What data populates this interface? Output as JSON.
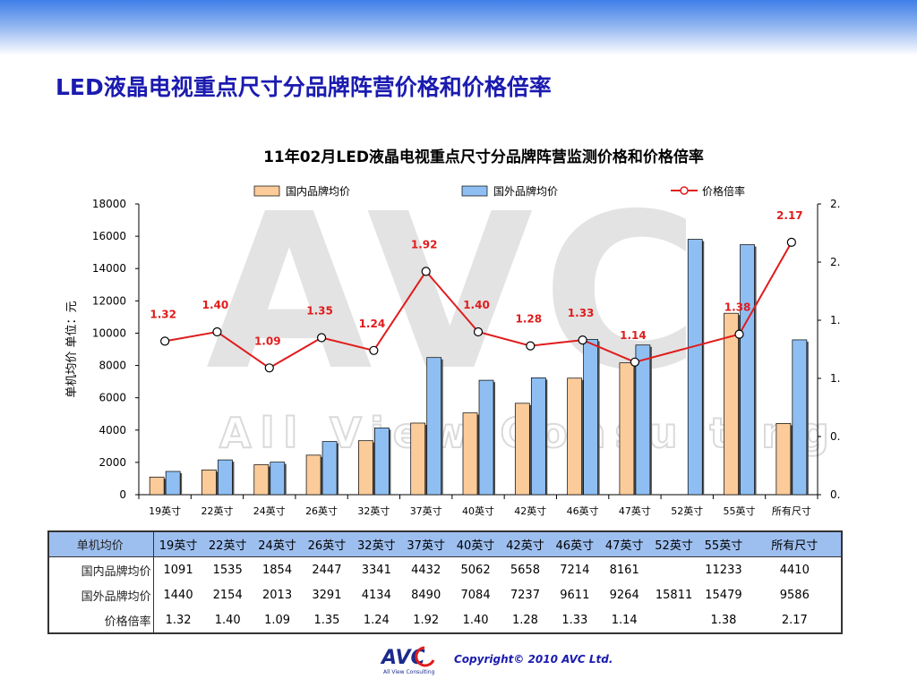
{
  "slide": {
    "title": "LED液晶电视重点尺寸分品牌阵营价格和价格倍率",
    "copyright": "Copyright© 2010 AVC Ltd.",
    "logo_text": "AVC",
    "logo_sub": "All View Consulting",
    "watermark_letters": "AVC",
    "watermark_text": "All View Consulting"
  },
  "chart_data": {
    "type": "bar",
    "title": "11年02月LED液晶电视重点尺寸分品牌阵营监测价格和价格倍率",
    "ylabel": "单机均价 单位：元",
    "ylim": [
      0,
      18000
    ],
    "y_ticks": [
      "0",
      "2000",
      "4000",
      "6000",
      "8000",
      "10000",
      "12000",
      "14000",
      "16000",
      "18000"
    ],
    "y2_ticks": [
      "0.",
      "0.",
      "1.",
      "1.",
      "2.",
      "2."
    ],
    "categories": [
      "19英寸",
      "22英寸",
      "24英寸",
      "26英寸",
      "32英寸",
      "37英寸",
      "40英寸",
      "42英寸",
      "46英寸",
      "47英寸",
      "52英寸",
      "55英寸",
      "所有尺寸"
    ],
    "series": [
      {
        "name": "国内品牌均价",
        "type": "bar",
        "color": "#fbcb9a",
        "values": [
          1091,
          1535,
          1854,
          2447,
          3341,
          4432,
          5062,
          5658,
          7214,
          8161,
          null,
          11233,
          4410
        ]
      },
      {
        "name": "国外品牌均价",
        "type": "bar",
        "color": "#8fbff2",
        "values": [
          1440,
          2154,
          2013,
          3291,
          4134,
          8490,
          7084,
          7237,
          9611,
          9264,
          15811,
          15479,
          9586
        ]
      },
      {
        "name": "价格倍率",
        "type": "line",
        "axis": "right",
        "color": "#e01c1c",
        "ylim": [
          0,
          2.5
        ],
        "values": [
          1.32,
          1.4,
          1.09,
          1.35,
          1.24,
          1.92,
          1.4,
          1.28,
          1.33,
          1.14,
          null,
          1.38,
          2.17
        ],
        "labels": [
          "1.32",
          "1.40",
          "1.09",
          "1.35",
          "1.24",
          "1.92",
          "1.40",
          "1.28",
          "1.33",
          "1.14",
          "",
          "1.38",
          "2.17"
        ]
      }
    ],
    "legend_position": "top",
    "grid": false
  },
  "table": {
    "header_label": "单机均价",
    "columns": [
      "19英寸",
      "22英寸",
      "24英寸",
      "26英寸",
      "32英寸",
      "37英寸",
      "40英寸",
      "42英寸",
      "46英寸",
      "47英寸",
      "52英寸",
      "55英寸",
      "所有尺寸"
    ],
    "rows": [
      {
        "label": "国内品牌均价",
        "cells": [
          "1091",
          "1535",
          "1854",
          "2447",
          "3341",
          "4432",
          "5062",
          "5658",
          "7214",
          "8161",
          "",
          "11233",
          "4410"
        ]
      },
      {
        "label": "国外品牌均价",
        "cells": [
          "1440",
          "2154",
          "2013",
          "3291",
          "4134",
          "8490",
          "7084",
          "7237",
          "9611",
          "9264",
          "15811",
          "15479",
          "9586"
        ]
      },
      {
        "label": "价格倍率",
        "cells": [
          "1.32",
          "1.40",
          "1.09",
          "1.35",
          "1.24",
          "1.92",
          "1.40",
          "1.28",
          "1.33",
          "1.14",
          "",
          "1.38",
          "2.17"
        ]
      }
    ]
  }
}
